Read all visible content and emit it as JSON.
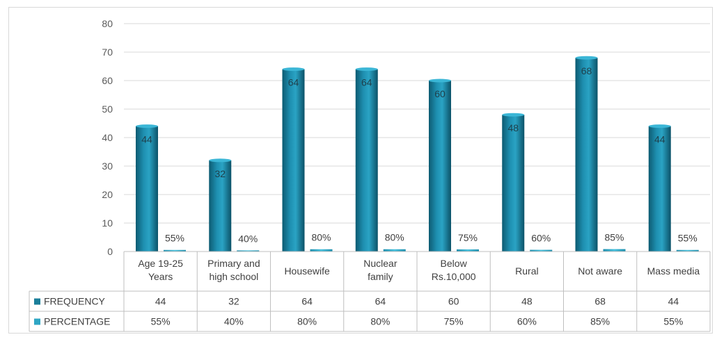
{
  "chart_data": {
    "type": "bar",
    "categories": [
      [
        "Age 19-25",
        "Years"
      ],
      [
        "Primary and",
        "high school"
      ],
      [
        "Housewife"
      ],
      [
        "Nuclear",
        "family"
      ],
      [
        "Below",
        "Rs.10,000"
      ],
      [
        "Rural"
      ],
      [
        "Not aware"
      ],
      [
        "Mass media"
      ]
    ],
    "series": [
      {
        "name": "FREQUENCY",
        "values": [
          44,
          32,
          64,
          64,
          60,
          48,
          68,
          44
        ],
        "labels": [
          "44",
          "32",
          "64",
          "64",
          "60",
          "48",
          "68",
          "44"
        ],
        "color": "#1b7f9a"
      },
      {
        "name": "PERCENTAGE",
        "values": [
          0.55,
          0.4,
          0.8,
          0.8,
          0.75,
          0.6,
          0.85,
          0.55
        ],
        "labels": [
          "55%",
          "40%",
          "80%",
          "80%",
          "75%",
          "60%",
          "85%",
          "55%"
        ],
        "color": "#2fa6c4"
      }
    ],
    "yticks": [
      "0",
      "10",
      "20",
      "30",
      "40",
      "50",
      "60",
      "70",
      "80"
    ],
    "ylim": [
      0,
      80
    ],
    "grid": true,
    "data_table": true
  }
}
